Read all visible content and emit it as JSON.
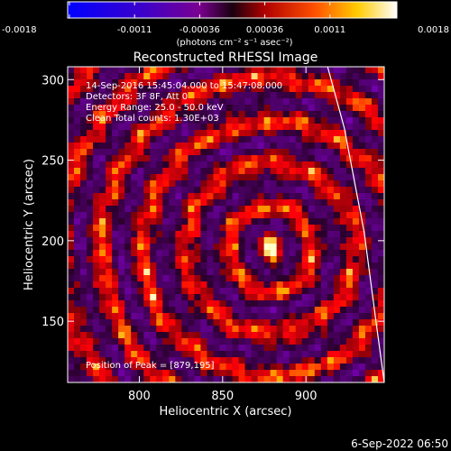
{
  "colorbar": {
    "ticks": [
      "-0.0018",
      "-0.0011",
      "-0.00036",
      "0.00036",
      "0.0011",
      "0.0018"
    ],
    "units": "(photons cm⁻² s⁻¹ asec⁻²)",
    "range": [
      -0.0018,
      0.0018
    ]
  },
  "chart_data": {
    "type": "heatmap",
    "title": "Reconstructed RHESSI Image",
    "xlabel": "Heliocentric X (arcsec)",
    "ylabel": "Heliocentric Y (arcsec)",
    "xlim": [
      757,
      947
    ],
    "ylim": [
      112,
      308
    ],
    "xticks": [
      800,
      850,
      900
    ],
    "yticks": [
      150,
      200,
      250,
      300
    ],
    "peak": {
      "x": 879,
      "y": 195
    },
    "limb_curve": [
      [
        913,
        308
      ],
      [
        923,
        270
      ],
      [
        935,
        205
      ],
      [
        942,
        150
      ],
      [
        947,
        112
      ]
    ],
    "annotations": [
      "14-Sep-2016 15:45:04.000 to 15:47:08.000",
      "Detectors: 3F 8F, Att 0",
      "Energy Range: 25.0 - 50.0 keV",
      "Clean     Total counts: 1.30E+03",
      "Position of Peak = [879,195]"
    ]
  },
  "footer": {
    "timestamp": "6-Sep-2022 06:50"
  }
}
